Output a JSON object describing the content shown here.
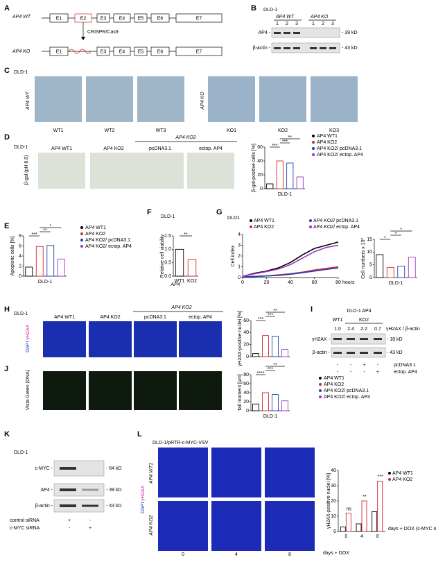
{
  "A": {
    "label": "A",
    "wt": "AP4 WT",
    "ko": "AP4 KO",
    "exons": [
      "E1",
      "E2",
      "E3",
      "E4",
      "E5",
      "E6",
      "E7"
    ],
    "method": "CRISPR/Cas9"
  },
  "B": {
    "label": "B",
    "cell_line": "DLD-1",
    "groups": [
      "AP4 WT",
      "AP4 KO"
    ],
    "lanes": [
      "1",
      "2",
      "3",
      "1",
      "2",
      "3"
    ],
    "rows": [
      "AP4 -",
      "β-actin -"
    ],
    "sizes": [
      "- 39 kD",
      "- 43 kD"
    ]
  },
  "C": {
    "label": "C",
    "cell_line": "DLD-1",
    "wt": "AP4 WT",
    "ko": "AP4 KO",
    "wt_clones": [
      "WT1",
      "WT2",
      "WT3"
    ],
    "ko_clones": [
      "KO1",
      "KO2",
      "KO3"
    ]
  },
  "D": {
    "label": "D",
    "cell_line": "DLD-1",
    "row_label": "β-gal (pH 6.0)",
    "group": "AP4 KO2",
    "columns": [
      "AP4 WT1",
      "AP4 KO2",
      "pcDNA3.1",
      "ectop. AP4"
    ],
    "legend": [
      "AP4 WT1",
      "AP4 KO2",
      "AP4 KO2/ pcDNA3.1",
      "AP4 KO2/ ectop. AP4"
    ],
    "chart": {
      "type": "bar",
      "ylabel": "β-gal-positive cells [%]",
      "xlabel": "DLD-1",
      "values": [
        7,
        40,
        37,
        17
      ],
      "colors": [
        "#000000",
        "#d62728",
        "#1f3fbf",
        "#9b30c8"
      ],
      "ylim": [
        0,
        60
      ],
      "yticks": [
        0,
        20,
        40,
        60
      ],
      "significance": [
        "***",
        "***",
        "**"
      ]
    }
  },
  "E": {
    "label": "E",
    "legend": [
      "AP4 WT1",
      "AP4 KO2",
      "AP4 KO2/ pcDNA3.1",
      "AP4 KO2/ ectop. AP4"
    ],
    "chart": {
      "type": "bar",
      "ylabel": "Apoptotic cells [%]",
      "xlabel": "DLD-1",
      "values": [
        1.8,
        5.9,
        6.1,
        3.4
      ],
      "colors": [
        "#000000",
        "#d62728",
        "#1f3fbf",
        "#9b30c8"
      ],
      "ylim": [
        0,
        8
      ],
      "yticks": [
        0,
        2,
        4,
        6,
        8
      ],
      "significance": [
        "***",
        "**",
        "*"
      ]
    }
  },
  "F": {
    "label": "F",
    "cell_line": "DLD-1",
    "group": "AP4",
    "chart": {
      "type": "bar",
      "ylabel": "Relative cell viability",
      "categories": [
        "WT1",
        "KO2"
      ],
      "values": [
        1.0,
        0.62
      ],
      "colors": [
        "#000000",
        "#d62728"
      ],
      "ylim": [
        0,
        1.5
      ],
      "yticks": [
        {
          "value": 0,
          "label": "0.0"
        },
        {
          "value": 0.5,
          "label": "0.5"
        },
        {
          "value": 1,
          "label": "1.0"
        },
        {
          "value": 1.5,
          "label": "1.5"
        }
      ],
      "significance": [
        "**"
      ]
    }
  },
  "G": {
    "label": "G",
    "cell_line": "DLD1",
    "chart": {
      "type": "line",
      "ylabel": "Cell index",
      "xlabel": "hours",
      "xlim": [
        0,
        80
      ],
      "xticks": [
        0,
        20,
        40,
        60,
        80
      ],
      "ylim": [
        0,
        4
      ],
      "yticks": [
        0,
        1,
        2,
        3,
        4
      ],
      "series": [
        {
          "name": "AP4 WT1",
          "color": "#000000",
          "x": [
            0,
            10,
            20,
            30,
            40,
            50,
            60,
            70,
            80
          ],
          "values": [
            0.1,
            0.4,
            0.6,
            0.9,
            1.4,
            2.1,
            2.7,
            3.0,
            3.3
          ]
        },
        {
          "name": "AP4 KO2",
          "color": "#d62728",
          "x": [
            0,
            10,
            20,
            30,
            40,
            50,
            60,
            70,
            80
          ],
          "values": [
            0.05,
            0.1,
            0.15,
            0.25,
            0.35,
            0.5,
            0.7,
            0.85,
            1.0
          ]
        },
        {
          "name": "AP4 KO2/ pcDNA3.1",
          "color": "#1f3fbf",
          "x": [
            0,
            10,
            20,
            30,
            40,
            50,
            60,
            70,
            80
          ],
          "values": [
            0.05,
            0.1,
            0.15,
            0.2,
            0.3,
            0.45,
            0.6,
            0.75,
            0.9
          ]
        },
        {
          "name": "AP4 KO2/ ectop. AP4",
          "color": "#9b30c8",
          "x": [
            0,
            10,
            20,
            30,
            40,
            50,
            60,
            70,
            80
          ],
          "values": [
            0.1,
            0.35,
            0.55,
            0.8,
            1.2,
            1.8,
            2.4,
            2.8,
            3.0
          ]
        }
      ]
    },
    "chart2": {
      "type": "bar",
      "ylabel": "Cell numbers x 10³",
      "xlabel": "DLD-1",
      "values": [
        9,
        4,
        4.5,
        8
      ],
      "colors": [
        "#000000",
        "#d62728",
        "#1f3fbf",
        "#9b30c8"
      ],
      "ylim": [
        0,
        15
      ],
      "yticks": [
        0,
        5,
        10,
        15
      ],
      "significance": [
        "*",
        "*",
        "*"
      ]
    }
  },
  "H": {
    "label": "H",
    "cell_line": "DLD-1",
    "group": "AP4 KO2",
    "columns": [
      "AP4 WT1",
      "AP4 KO2",
      "pcDNA3.1",
      "ectop. AP4"
    ],
    "row_label": [
      "DAPI",
      "γH2AX"
    ],
    "chart": {
      "type": "bar",
      "ylabel": "γH2AX-positive nuclei [%]",
      "values": [
        5,
        35,
        34,
        12
      ],
      "colors": [
        "#000000",
        "#d62728",
        "#1f3fbf",
        "#9b30c8"
      ],
      "ylim": [
        0,
        60
      ],
      "yticks": [
        0,
        20,
        40,
        60
      ],
      "significance": [
        "***",
        "***",
        "**"
      ]
    }
  },
  "I": {
    "label": "I",
    "header": "DLD-1 AP4",
    "groups": [
      "WT1",
      "KO2"
    ],
    "ratio_label": "γH2AX / β-actin",
    "ratios": [
      {
        "value": 1,
        "label": "1.0"
      },
      2.4,
      2.2,
      0.7
    ],
    "rows": [
      "γH2AX -",
      "β-actin -"
    ],
    "sizes": [
      "- 18 kD",
      "- 43 kD"
    ],
    "treatments": [
      {
        "name": "pcDNA3.1",
        "signs": [
          "-",
          "-",
          "+",
          "-"
        ]
      },
      {
        "name": "ectop. AP4",
        "signs": [
          "-",
          "-",
          "-",
          "+"
        ]
      }
    ]
  },
  "J": {
    "label": "J",
    "row_label": "Vista Green (DNA)",
    "legend": [
      "AP4 WT1",
      "AP4 KO2",
      "AP4 KO2/ pcDNA3.1",
      "AP4 KO2/ ectop. AP4"
    ],
    "chart": {
      "type": "bar",
      "ylabel": "Tail moment [µm]",
      "xlabel": "DLD-1",
      "values": [
        15,
        40,
        36,
        22
      ],
      "colors": [
        "#000000",
        "#d62728",
        "#1f3fbf",
        "#9b30c8"
      ],
      "ylim": [
        0,
        80
      ],
      "yticks": [
        0,
        20,
        40,
        60,
        80
      ],
      "significance": [
        "****",
        "***",
        "**"
      ]
    }
  },
  "K": {
    "label": "K",
    "cell_line": "DLD-1",
    "rows": [
      "c-MYC -",
      "AP4 -",
      "β-actin -"
    ],
    "sizes": [
      "- 64 kD",
      "- 39 kD",
      "- 43 kD"
    ],
    "treatments": [
      {
        "name": "control siRNA",
        "signs": [
          "+",
          "-"
        ]
      },
      {
        "name": "c-MYC siRNA",
        "signs": [
          "-",
          "+"
        ]
      }
    ]
  },
  "L": {
    "label": "L",
    "title": "DLD-1/pRTR-c-MYC-VSV",
    "rows": [
      "AP4 WT1",
      "AP4 KO2"
    ],
    "stain": [
      "DAPI",
      "γH2AX"
    ],
    "days": [
      "0",
      "4",
      "8"
    ],
    "days_label": "days + DOX",
    "chart": {
      "type": "groupbar",
      "ylabel": "γH2AX-positive nuclei [%]",
      "x": [
        0,
        4,
        8
      ],
      "xlim": [
        -2,
        10
      ],
      "xticks": [
        0,
        4,
        8
      ],
      "ylim": [
        0,
        40
      ],
      "yticks": [
        0,
        10,
        20,
        30,
        40
      ],
      "xlabel": "days + DOX (c-MYC on)",
      "series": [
        {
          "name": "AP4 WT1",
          "color": "#000000",
          "values": [
            3,
            5,
            13
          ]
        },
        {
          "name": "AP4 KO2",
          "color": "#d62728",
          "values": [
            12,
            20,
            33
          ]
        }
      ],
      "annotations": [
        "ns",
        "**",
        "***"
      ]
    }
  }
}
